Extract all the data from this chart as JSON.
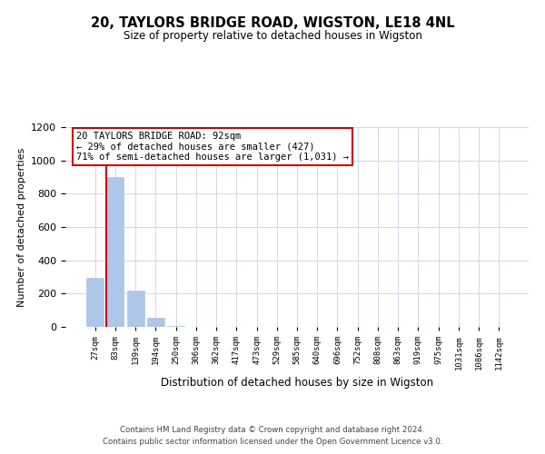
{
  "title": "20, TAYLORS BRIDGE ROAD, WIGSTON, LE18 4NL",
  "subtitle": "Size of property relative to detached houses in Wigston",
  "xlabel": "Distribution of detached houses by size in Wigston",
  "ylabel": "Number of detached properties",
  "bar_labels": [
    "27sqm",
    "83sqm",
    "139sqm",
    "194sqm",
    "250sqm",
    "306sqm",
    "362sqm",
    "417sqm",
    "473sqm",
    "529sqm",
    "585sqm",
    "640sqm",
    "696sqm",
    "752sqm",
    "808sqm",
    "863sqm",
    "919sqm",
    "975sqm",
    "1031sqm",
    "1086sqm",
    "1142sqm"
  ],
  "bar_values": [
    295,
    900,
    220,
    55,
    5,
    0,
    0,
    0,
    0,
    0,
    0,
    0,
    0,
    0,
    0,
    0,
    0,
    0,
    0,
    0,
    0
  ],
  "bar_color": "#aec6e8",
  "bar_edge_color": "#aec6e8",
  "vline_color": "#cc0000",
  "ylim": [
    0,
    1200
  ],
  "yticks": [
    0,
    200,
    400,
    600,
    800,
    1000,
    1200
  ],
  "annotation_line1": "20 TAYLORS BRIDGE ROAD: 92sqm",
  "annotation_line2": "← 29% of detached houses are smaller (427)",
  "annotation_line3": "71% of semi-detached houses are larger (1,031) →",
  "footer_line1": "Contains HM Land Registry data © Crown copyright and database right 2024.",
  "footer_line2": "Contains public sector information licensed under the Open Government Licence v3.0.",
  "background_color": "#ffffff",
  "grid_color": "#ccd9ea"
}
